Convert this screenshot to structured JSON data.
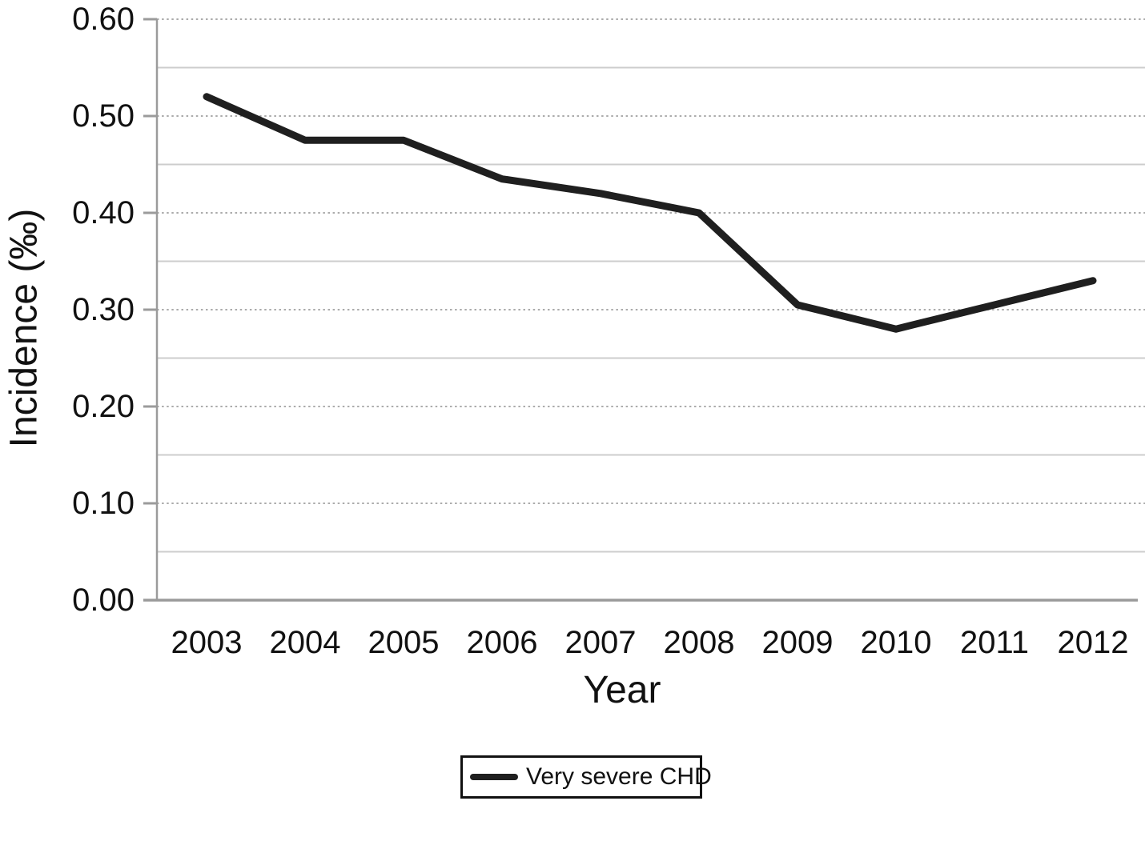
{
  "chart_data": {
    "type": "line",
    "title": "",
    "xlabel": "Year",
    "ylabel": "Incidence (‰)",
    "categories": [
      "2003",
      "2004",
      "2005",
      "2006",
      "2007",
      "2008",
      "2009",
      "2010",
      "2011",
      "2012"
    ],
    "series": [
      {
        "name": "Very severe CHD",
        "color": "#1f1f1f",
        "values": [
          0.52,
          0.475,
          0.475,
          0.435,
          0.42,
          0.4,
          0.305,
          0.28,
          0.305,
          0.33
        ]
      }
    ],
    "ylim": [
      0.0,
      0.6
    ],
    "yticks": [
      "0.00",
      "0.10",
      "0.20",
      "0.30",
      "0.40",
      "0.50",
      "0.60"
    ],
    "grid": {
      "major_style": "dotted",
      "minor_style": "solid",
      "major_color": "#ababab",
      "minor_color": "#cdcdcd",
      "minor_step": 0.05
    },
    "axis_color": "#9b9b9b",
    "text_color": "#111111",
    "legend": {
      "position": "bottom-center",
      "border_color": "#111111",
      "entries": [
        "Very severe CHD"
      ]
    }
  }
}
